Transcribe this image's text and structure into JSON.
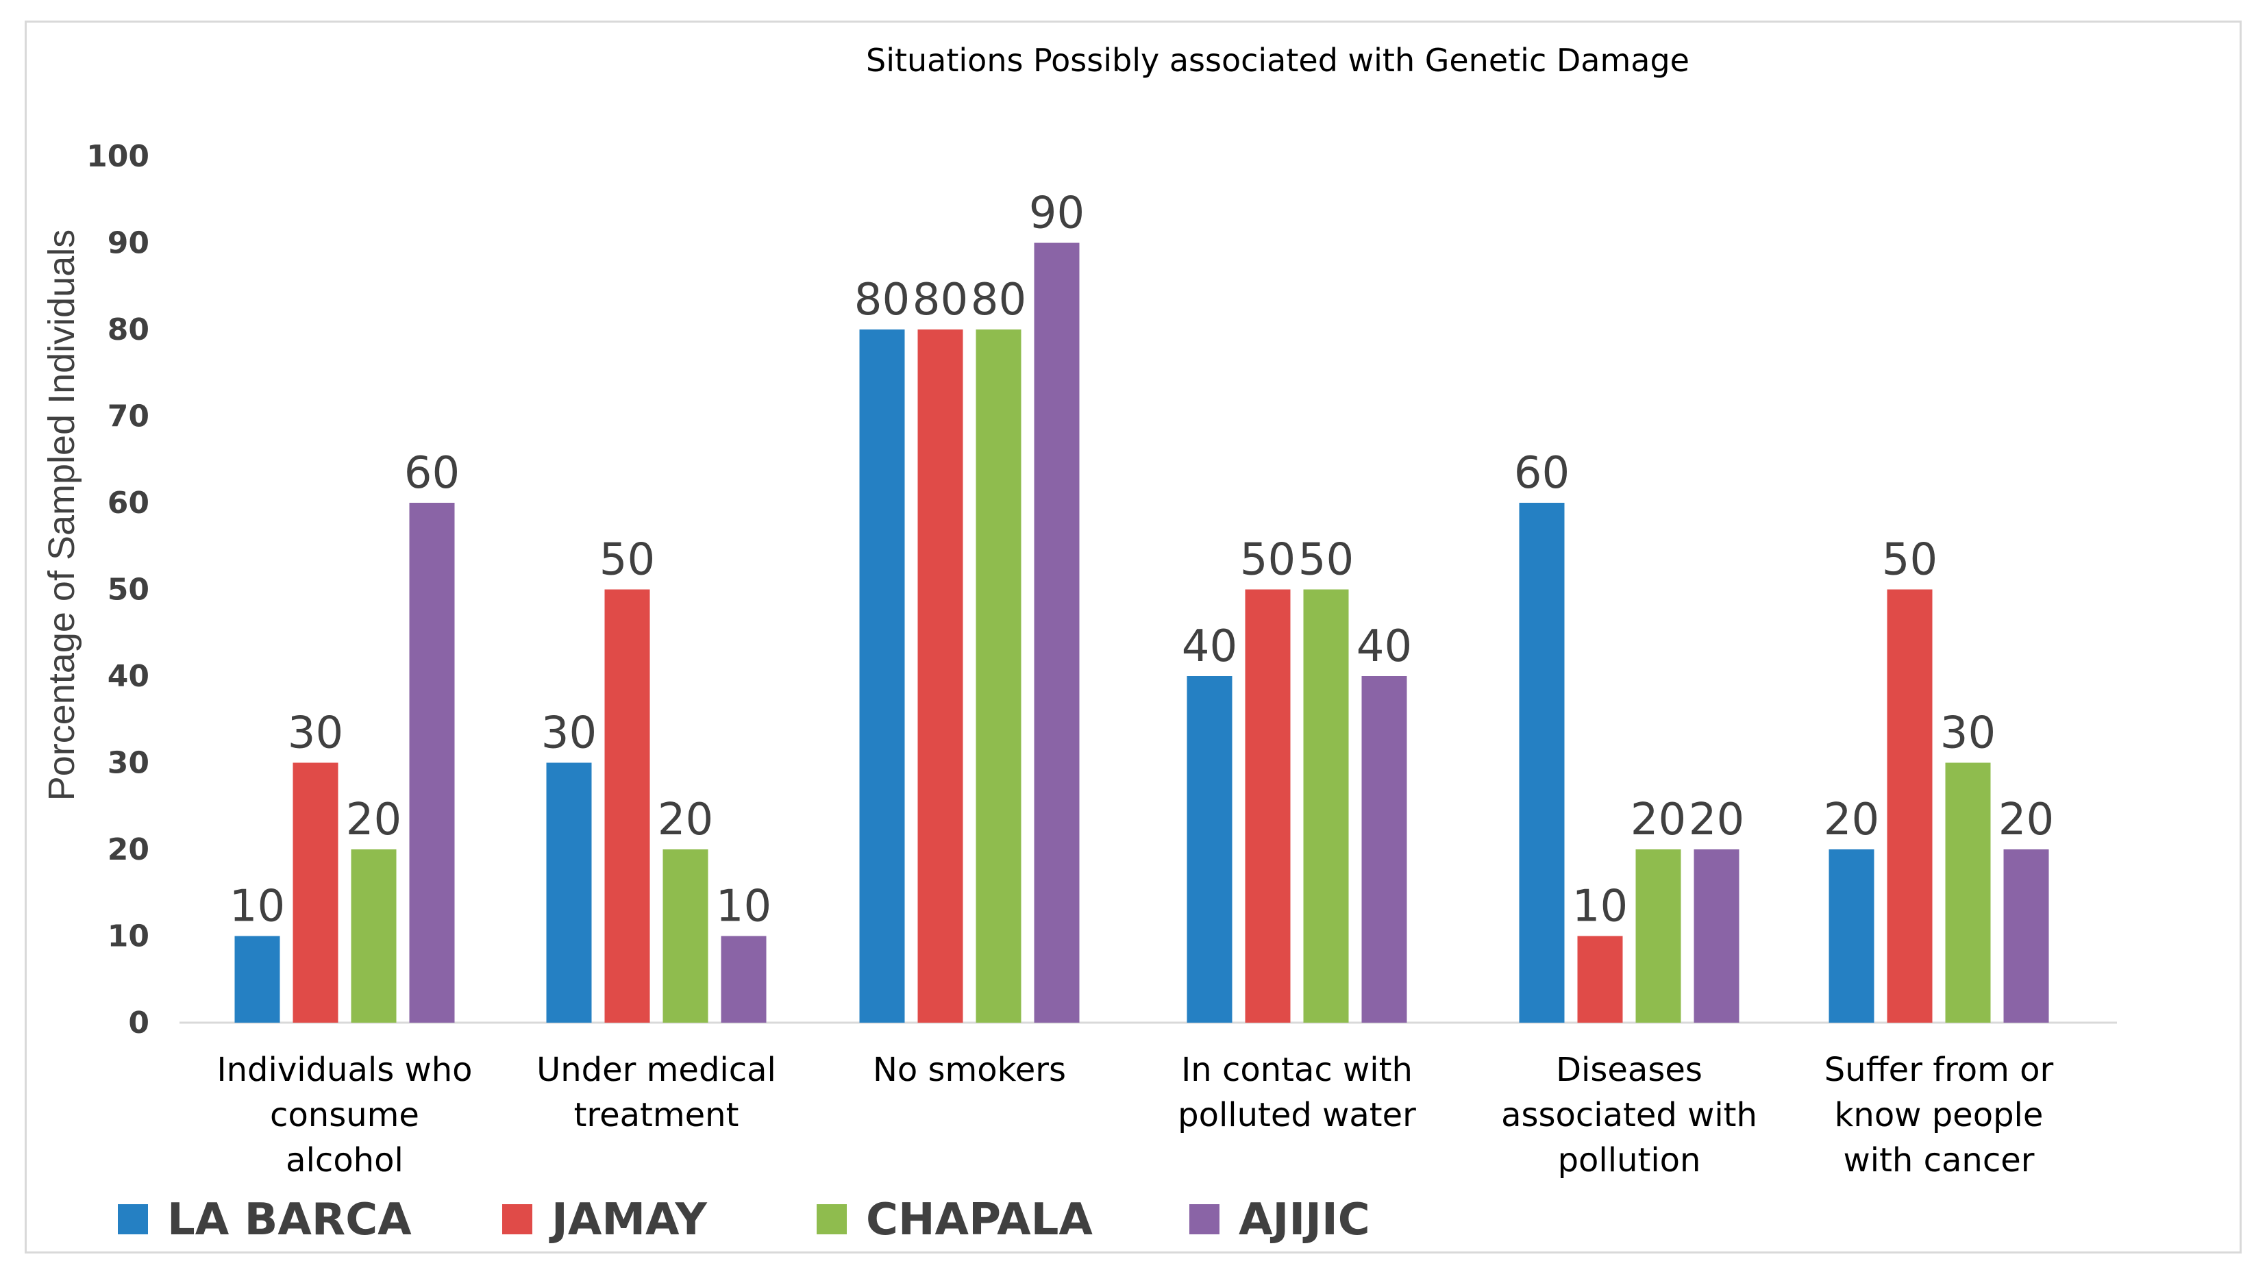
{
  "chart_data": {
    "type": "bar",
    "title": "Situations Possibly associated with Genetic Damage",
    "xlabel": "",
    "ylabel": "Porcentage of Sampled Individuals",
    "ylim": [
      0,
      100
    ],
    "yticks": [
      0,
      10,
      20,
      30,
      40,
      50,
      60,
      70,
      80,
      90,
      100
    ],
    "grid": false,
    "legend_position": "bottom",
    "categories": [
      [
        "Individuals who",
        "consume",
        "alcohol"
      ],
      [
        "Under medical",
        "treatment"
      ],
      [
        "No smokers"
      ],
      [
        "In contac with",
        "polluted water"
      ],
      [
        "Diseases",
        "associated with",
        "pollution"
      ],
      [
        "Suffer from or",
        "know people",
        "with cancer"
      ]
    ],
    "series": [
      {
        "name": "LA BARCA",
        "color": "#2580C3",
        "values": [
          10,
          30,
          80,
          40,
          60,
          20
        ]
      },
      {
        "name": "JAMAY",
        "color": "#E04B48",
        "values": [
          30,
          50,
          80,
          50,
          10,
          50
        ]
      },
      {
        "name": "CHAPALA",
        "color": "#8FBC4E",
        "values": [
          20,
          20,
          80,
          50,
          20,
          30
        ]
      },
      {
        "name": "AJIJIC",
        "color": "#8A64A6",
        "values": [
          60,
          10,
          90,
          40,
          20,
          20
        ]
      }
    ]
  }
}
